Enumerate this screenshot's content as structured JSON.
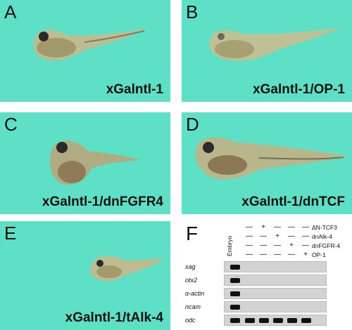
{
  "panels": [
    {
      "letter": "A",
      "caption": "xGalntl-1"
    },
    {
      "letter": "B",
      "caption": "xGalntl-1/OP-1"
    },
    {
      "letter": "C",
      "caption": "xGalntl-1/dnFGFR4"
    },
    {
      "letter": "D",
      "caption": "xGalntl-1/dnTCF"
    },
    {
      "letter": "E",
      "caption": "xGalntl-1/tAlk-4"
    }
  ],
  "panel_f": {
    "letter": "F",
    "embryo_label": "Embryo",
    "conditions": [
      {
        "label": "ΔN-TCF3",
        "signs": [
          "—",
          "+",
          "—",
          "—",
          "—"
        ]
      },
      {
        "label": "dnAlk-4",
        "signs": [
          "—",
          "—",
          "+",
          "—",
          "—"
        ]
      },
      {
        "label": "dnFGFR-4",
        "signs": [
          "—",
          "—",
          "—",
          "+",
          "—"
        ]
      },
      {
        "label": "OP-1",
        "signs": [
          "—",
          "—",
          "—",
          "—",
          "+"
        ]
      }
    ],
    "genes": [
      {
        "name": "xag",
        "bands": [
          1,
          0,
          0,
          0,
          0,
          0
        ]
      },
      {
        "name": "otx2",
        "bands": [
          1,
          0,
          0,
          0,
          0,
          0
        ]
      },
      {
        "name": "α-actin",
        "bands": [
          1,
          0,
          0,
          0,
          0,
          0
        ]
      },
      {
        "name": "ncam",
        "bands": [
          1,
          0,
          0,
          0,
          0,
          0
        ]
      },
      {
        "name": "odc",
        "bands": [
          1,
          1,
          1,
          1,
          1,
          1
        ]
      }
    ]
  },
  "colors": {
    "panel_bg": "#5ee0c7",
    "gel_bg": "#d3d3d3",
    "band": "#111111"
  }
}
